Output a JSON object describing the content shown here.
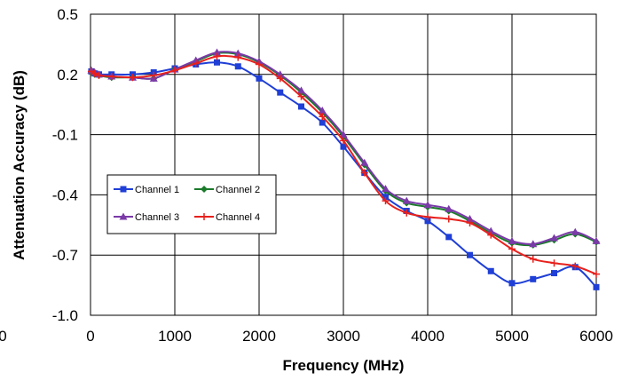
{
  "chart_data": {
    "type": "line",
    "xlabel": "Frequency (MHz)",
    "ylabel": "Attenuation Accuracy (dB)",
    "xlim": [
      0,
      6000
    ],
    "ylim": [
      -1.0,
      0.5
    ],
    "xticks": [
      0,
      1000,
      2000,
      3000,
      4000,
      5000,
      6000
    ],
    "xtick_labels": [
      "0",
      "1000",
      "2000",
      "3000",
      "4000",
      "5000",
      "6000"
    ],
    "yticks": [
      0.5,
      0.2,
      -0.1,
      -0.4,
      -0.7,
      -1.0
    ],
    "ytick_labels": [
      "0.5",
      "0.2",
      "-0.1",
      "-0.4",
      "-0.7",
      "-1.0"
    ],
    "left_clipped_label": "0",
    "grid": true,
    "legend_position": "center-left",
    "series": [
      {
        "name": "Channel 1",
        "color": "#1f3fd6",
        "marker": "square",
        "x": [
          10,
          50,
          100,
          250,
          500,
          750,
          1000,
          1250,
          1500,
          1750,
          2000,
          2250,
          2500,
          2750,
          3000,
          3250,
          3500,
          3750,
          4000,
          4250,
          4500,
          4750,
          5000,
          5250,
          5500,
          5750,
          6000
        ],
        "y": [
          0.215,
          0.205,
          0.2,
          0.2,
          0.2,
          0.21,
          0.23,
          0.25,
          0.26,
          0.24,
          0.18,
          0.11,
          0.04,
          -0.04,
          -0.16,
          -0.29,
          -0.41,
          -0.48,
          -0.53,
          -0.61,
          -0.7,
          -0.78,
          -0.84,
          -0.82,
          -0.79,
          -0.76,
          -0.86
        ]
      },
      {
        "name": "Channel 2",
        "color": "#1a7a2a",
        "marker": "diamond",
        "x": [
          10,
          50,
          100,
          250,
          500,
          750,
          1000,
          1250,
          1500,
          1750,
          2000,
          2250,
          2500,
          2750,
          3000,
          3250,
          3500,
          3750,
          4000,
          4250,
          4500,
          4750,
          5000,
          5250,
          5500,
          5750,
          6000
        ],
        "y": [
          0.21,
          0.2,
          0.195,
          0.185,
          0.185,
          0.18,
          0.225,
          0.265,
          0.305,
          0.3,
          0.26,
          0.195,
          0.11,
          0.01,
          -0.11,
          -0.25,
          -0.38,
          -0.44,
          -0.46,
          -0.48,
          -0.53,
          -0.59,
          -0.64,
          -0.65,
          -0.625,
          -0.595,
          -0.635
        ]
      },
      {
        "name": "Channel 3",
        "color": "#7a3aa8",
        "marker": "triangle",
        "x": [
          10,
          50,
          100,
          250,
          500,
          750,
          1000,
          1250,
          1500,
          1750,
          2000,
          2250,
          2500,
          2750,
          3000,
          3250,
          3500,
          3750,
          4000,
          4250,
          4500,
          4750,
          5000,
          5250,
          5500,
          5750,
          6000
        ],
        "y": [
          0.22,
          0.21,
          0.2,
          0.19,
          0.185,
          0.18,
          0.225,
          0.27,
          0.31,
          0.305,
          0.265,
          0.2,
          0.12,
          0.02,
          -0.1,
          -0.24,
          -0.37,
          -0.43,
          -0.45,
          -0.47,
          -0.52,
          -0.58,
          -0.63,
          -0.645,
          -0.615,
          -0.585,
          -0.63
        ]
      },
      {
        "name": "Channel 4",
        "color": "#e8201c",
        "marker": "plus",
        "x": [
          10,
          50,
          100,
          250,
          500,
          750,
          1000,
          1250,
          1500,
          1750,
          2000,
          2250,
          2500,
          2750,
          3000,
          3250,
          3500,
          3750,
          4000,
          4250,
          4500,
          4750,
          5000,
          5250,
          5500,
          5750,
          6000
        ],
        "y": [
          0.215,
          0.205,
          0.195,
          0.19,
          0.185,
          0.195,
          0.22,
          0.255,
          0.29,
          0.285,
          0.25,
          0.18,
          0.09,
          -0.01,
          -0.13,
          -0.29,
          -0.43,
          -0.49,
          -0.51,
          -0.52,
          -0.54,
          -0.6,
          -0.67,
          -0.72,
          -0.74,
          -0.755,
          -0.795
        ]
      }
    ]
  }
}
